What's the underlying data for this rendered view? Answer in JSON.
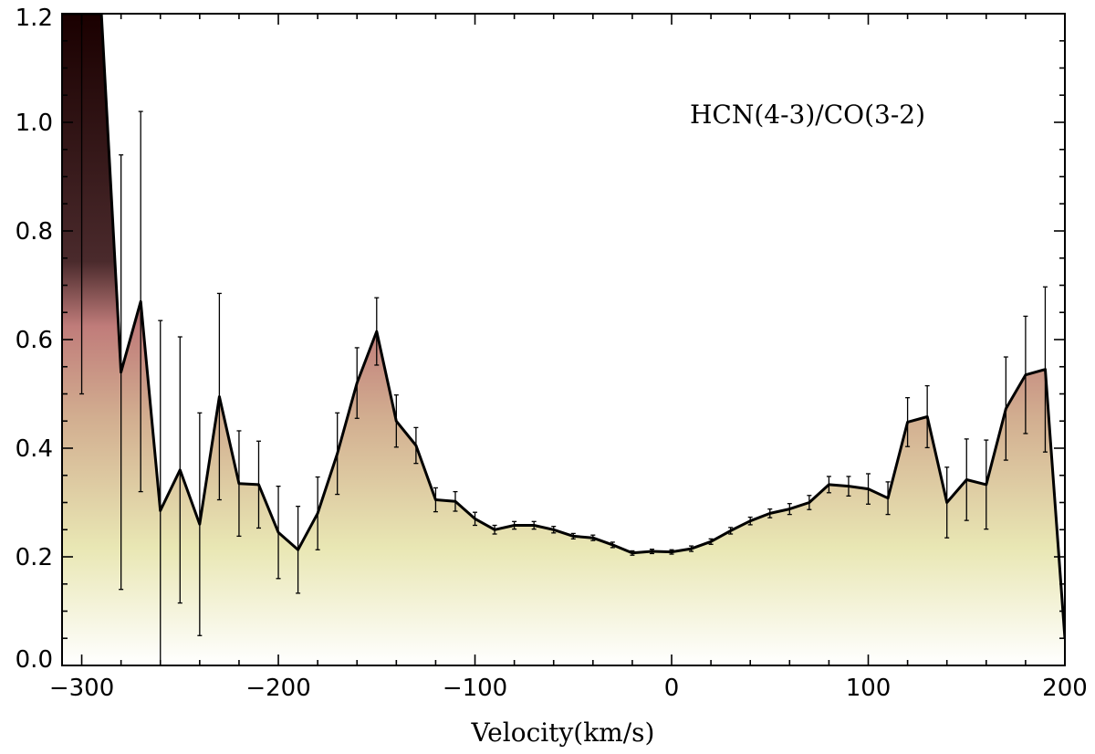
{
  "chart_data": {
    "type": "area",
    "title": "",
    "xlabel": "Velocity(km/s)",
    "ylabel": "",
    "annotation": "HCN(4-3)/CO(3-2)",
    "xlim": [
      -310,
      200
    ],
    "ylim": [
      0.0,
      1.2
    ],
    "x_ticks": [
      -300,
      -200,
      -100,
      0,
      100,
      200
    ],
    "x_tick_labels": [
      "−300",
      "−200",
      "−100",
      "0",
      "100",
      "200"
    ],
    "y_ticks": [
      0.0,
      0.2,
      0.4,
      0.6,
      0.8,
      1.0,
      1.2
    ],
    "y_tick_labels": [
      "0.0",
      "0.2",
      "0.4",
      "0.6",
      "0.8",
      "1.0",
      "1.2"
    ],
    "grid": false,
    "fill_gradient": [
      "#ffffff",
      "#e8e6b0",
      "#d4b08e",
      "#c07a78",
      "#5a3436",
      "#1a0000"
    ],
    "series": [
      {
        "x": [
          -310,
          -300,
          -290,
          -280,
          -270,
          -260,
          -250,
          -240,
          -230,
          -220,
          -210,
          -200,
          -190,
          -180,
          -170,
          -160,
          -150,
          -140,
          -130,
          -120,
          -110,
          -100,
          -90,
          -80,
          -70,
          -60,
          -50,
          -40,
          -30,
          -20,
          -10,
          0,
          10,
          20,
          30,
          40,
          50,
          60,
          70,
          80,
          90,
          100,
          110,
          120,
          130,
          140,
          150,
          160,
          170,
          180,
          190,
          200
        ],
        "y": [
          1.2,
          1.2,
          1.2,
          0.54,
          0.67,
          0.285,
          0.36,
          0.26,
          0.495,
          0.335,
          0.333,
          0.245,
          0.213,
          0.28,
          0.39,
          0.52,
          0.615,
          0.45,
          0.405,
          0.305,
          0.302,
          0.27,
          0.25,
          0.258,
          0.258,
          0.25,
          0.238,
          0.235,
          0.222,
          0.207,
          0.21,
          0.209,
          0.215,
          0.228,
          0.248,
          0.266,
          0.28,
          0.288,
          0.3,
          0.333,
          0.33,
          0.325,
          0.308,
          0.448,
          0.458,
          0.3,
          0.342,
          0.333,
          0.473,
          0.535,
          0.545,
          0.05
        ],
        "err": [
          0,
          0.7,
          0,
          0.4,
          0.35,
          0.35,
          0.245,
          0.205,
          0.19,
          0.097,
          0.08,
          0.085,
          0.08,
          0.067,
          0.075,
          0.065,
          0.062,
          0.048,
          0.033,
          0.022,
          0.018,
          0.012,
          0.008,
          0.007,
          0.007,
          0.006,
          0.005,
          0.005,
          0.005,
          0.004,
          0.004,
          0.004,
          0.005,
          0.005,
          0.006,
          0.007,
          0.008,
          0.01,
          0.013,
          0.015,
          0.018,
          0.028,
          0.03,
          0.045,
          0.057,
          0.065,
          0.075,
          0.082,
          0.095,
          0.108,
          0.152,
          0
        ]
      }
    ]
  }
}
